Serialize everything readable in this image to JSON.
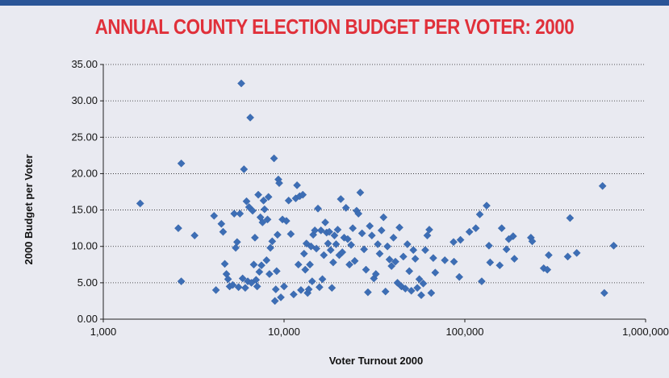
{
  "chart_data": {
    "type": "scatter",
    "title": "ANNUAL COUNTY ELECTION BUDGET PER VOTER: 2000",
    "xlabel": "Voter Turnout 2000",
    "ylabel": "2000 Budget per  Voter",
    "x_scale": "log",
    "xlim": [
      1000,
      1000000
    ],
    "ylim": [
      0,
      35
    ],
    "x_ticks": [
      "1,000",
      "10,000",
      "100,000",
      "1,000,000"
    ],
    "y_ticks": [
      "0.00",
      "5.00",
      "10.00",
      "15.00",
      "20.00",
      "25.00",
      "30.00",
      "35.00"
    ],
    "grid": "horizontal dotted",
    "legend": "none",
    "colors": {
      "marker": "#3d6eb5",
      "title": "#e0303a",
      "background": "#e9eaf1",
      "top_bar": "#2a5597"
    },
    "points": [
      [
        1600,
        15.9
      ],
      [
        2600,
        12.5
      ],
      [
        2700,
        21.4
      ],
      [
        2700,
        5.2
      ],
      [
        3200,
        11.5
      ],
      [
        4100,
        14.2
      ],
      [
        4200,
        4.0
      ],
      [
        4500,
        13.1
      ],
      [
        4600,
        12.0
      ],
      [
        4700,
        7.6
      ],
      [
        4800,
        6.2
      ],
      [
        4900,
        5.5
      ],
      [
        5000,
        4.5
      ],
      [
        5200,
        4.7
      ],
      [
        5300,
        14.5
      ],
      [
        5400,
        9.8
      ],
      [
        5500,
        10.6
      ],
      [
        5600,
        4.4
      ],
      [
        5700,
        14.5
      ],
      [
        5800,
        32.4
      ],
      [
        5900,
        5.6
      ],
      [
        6000,
        20.6
      ],
      [
        6100,
        4.3
      ],
      [
        6200,
        16.2
      ],
      [
        6300,
        5.2
      ],
      [
        6400,
        15.4
      ],
      [
        6500,
        27.7
      ],
      [
        6600,
        5.0
      ],
      [
        6700,
        14.9
      ],
      [
        6800,
        7.5
      ],
      [
        6900,
        11.2
      ],
      [
        7000,
        5.4
      ],
      [
        7100,
        4.5
      ],
      [
        7200,
        17.1
      ],
      [
        7300,
        6.5
      ],
      [
        7400,
        14.0
      ],
      [
        7500,
        7.4
      ],
      [
        7600,
        13.3
      ],
      [
        7700,
        16.3
      ],
      [
        7800,
        15.1
      ],
      [
        8000,
        8.1
      ],
      [
        8100,
        13.7
      ],
      [
        8200,
        16.8
      ],
      [
        8300,
        6.2
      ],
      [
        8400,
        9.8
      ],
      [
        8600,
        10.7
      ],
      [
        8800,
        22.1
      ],
      [
        8900,
        2.5
      ],
      [
        9000,
        4.1
      ],
      [
        9100,
        6.6
      ],
      [
        9200,
        11.6
      ],
      [
        9300,
        19.2
      ],
      [
        9400,
        18.7
      ],
      [
        9600,
        3.0
      ],
      [
        9800,
        13.7
      ],
      [
        10000,
        4.5
      ],
      [
        10300,
        13.5
      ],
      [
        10600,
        16.3
      ],
      [
        10900,
        11.7
      ],
      [
        11300,
        3.4
      ],
      [
        11600,
        16.6
      ],
      [
        11800,
        18.4
      ],
      [
        12000,
        7.5
      ],
      [
        12200,
        16.9
      ],
      [
        12400,
        4.0
      ],
      [
        12700,
        17.1
      ],
      [
        12900,
        9.0
      ],
      [
        13100,
        6.8
      ],
      [
        13300,
        10.4
      ],
      [
        13500,
        3.6
      ],
      [
        13700,
        4.1
      ],
      [
        13900,
        7.5
      ],
      [
        14100,
        10.0
      ],
      [
        14300,
        5.2
      ],
      [
        14500,
        11.6
      ],
      [
        14800,
        12.2
      ],
      [
        15100,
        9.7
      ],
      [
        15400,
        15.2
      ],
      [
        15700,
        4.4
      ],
      [
        16000,
        12.2
      ],
      [
        16300,
        5.5
      ],
      [
        16600,
        8.8
      ],
      [
        16900,
        13.3
      ],
      [
        17200,
        11.9
      ],
      [
        17500,
        10.4
      ],
      [
        17800,
        12.0
      ],
      [
        18100,
        9.5
      ],
      [
        18400,
        4.3
      ],
      [
        18700,
        7.8
      ],
      [
        19000,
        11.5
      ],
      [
        19400,
        10.3
      ],
      [
        19800,
        12.3
      ],
      [
        20200,
        8.8
      ],
      [
        20600,
        16.5
      ],
      [
        21000,
        9.2
      ],
      [
        21500,
        11.2
      ],
      [
        22000,
        15.3
      ],
      [
        22500,
        11.0
      ],
      [
        23000,
        7.5
      ],
      [
        23500,
        10.2
      ],
      [
        24000,
        12.5
      ],
      [
        24600,
        8.0
      ],
      [
        25200,
        14.9
      ],
      [
        25800,
        14.5
      ],
      [
        26400,
        17.4
      ],
      [
        27000,
        11.8
      ],
      [
        27700,
        9.6
      ],
      [
        28400,
        6.8
      ],
      [
        29100,
        3.7
      ],
      [
        29800,
        12.8
      ],
      [
        30600,
        11.5
      ],
      [
        31400,
        5.6
      ],
      [
        32200,
        6.2
      ],
      [
        33000,
        10.3
      ],
      [
        33800,
        9.0
      ],
      [
        34600,
        12.2
      ],
      [
        35500,
        14.0
      ],
      [
        36400,
        3.8
      ],
      [
        37300,
        10.0
      ],
      [
        38300,
        8.2
      ],
      [
        39300,
        7.3
      ],
      [
        40300,
        11.2
      ],
      [
        41300,
        7.9
      ],
      [
        42400,
        5.0
      ],
      [
        43500,
        12.6
      ],
      [
        44600,
        4.5
      ],
      [
        45700,
        8.6
      ],
      [
        46900,
        4.2
      ],
      [
        48100,
        10.3
      ],
      [
        49300,
        6.6
      ],
      [
        50600,
        3.9
      ],
      [
        51900,
        9.5
      ],
      [
        53200,
        8.3
      ],
      [
        54600,
        4.3
      ],
      [
        56000,
        5.5
      ],
      [
        57400,
        3.3
      ],
      [
        58900,
        4.9
      ],
      [
        60400,
        9.5
      ],
      [
        62000,
        11.5
      ],
      [
        63600,
        12.3
      ],
      [
        65200,
        3.6
      ],
      [
        66900,
        8.4
      ],
      [
        68600,
        6.4
      ],
      [
        77500,
        8.1
      ],
      [
        86600,
        10.6
      ],
      [
        87100,
        7.9
      ],
      [
        93200,
        5.8
      ],
      [
        94600,
        10.9
      ],
      [
        106000,
        12.0
      ],
      [
        115000,
        12.5
      ],
      [
        121000,
        14.4
      ],
      [
        124000,
        5.2
      ],
      [
        132000,
        15.6
      ],
      [
        136000,
        10.1
      ],
      [
        138000,
        7.8
      ],
      [
        156000,
        7.4
      ],
      [
        160000,
        12.5
      ],
      [
        170000,
        9.6
      ],
      [
        175000,
        11.0
      ],
      [
        185000,
        11.4
      ],
      [
        188000,
        8.3
      ],
      [
        232000,
        11.2
      ],
      [
        236000,
        10.7
      ],
      [
        273000,
        7.0
      ],
      [
        286000,
        6.8
      ],
      [
        291000,
        8.8
      ],
      [
        371000,
        8.6
      ],
      [
        382000,
        13.9
      ],
      [
        416000,
        9.1
      ],
      [
        578000,
        18.3
      ],
      [
        591000,
        3.6
      ],
      [
        666000,
        10.1
      ]
    ]
  }
}
